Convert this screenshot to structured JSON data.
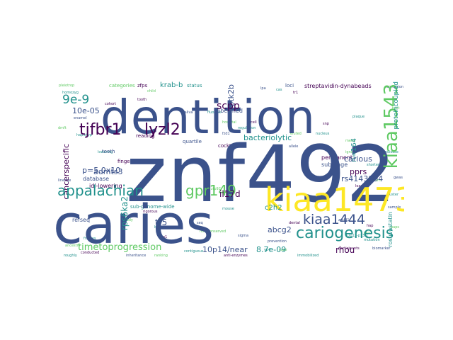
{
  "colors": {
    "background": "#ffffff",
    "viridis": [
      "#440154",
      "#3b528b",
      "#21918c",
      "#5ec962",
      "#fde725"
    ]
  },
  "words": {
    "znf492": "znf492",
    "dentition": "dentition",
    "caries": "caries",
    "kiaa1473": "kiaa1473",
    "tjfbr1": "tjfbr1",
    "lyzl2": "lyzl2",
    "appalachian": "appalachian",
    "gpr149": "gpr149",
    "kiaa1543": "kiaa1543",
    "cariogenesis": "cariogenesis",
    "kiaa1444": "kiaa1444",
    "timetoprogression": "timetoprogression",
    "e9": "9e-9",
    "bacteriolytic": "bacteriolytic",
    "scpp": "scpp",
    "ptk2b": "ptk2b",
    "proteincoupied": "proteincoupied",
    "rs4143094": "rs4143094",
    "il17d": "il17d",
    "abcg2": "abcg2",
    "tr5": "tr5",
    "rhou": "rhou",
    "e7": "8.7e-09",
    "nearp14": "10p14/near",
    "c2h2": "c2h2",
    "admts3": "admts3",
    "p50": "p=5.0x10",
    "cancerspecific": "cancerspecific",
    "e05": "10e-05",
    "pprs": "pprs",
    "carious": "carious",
    "krabb": "krab-b",
    "rps6ka2": "rps6ka2",
    "subcloned": "subcloned",
    "streptavidin": "streptavidin-dynabeads",
    "rosuvastatin": "rosuvastatin",
    "database": "database",
    "idllowering": "idl-lowering",
    "subgenome": "sub-genome-wide",
    "categories": "categories",
    "cocktail": "cocktail",
    "refseq": "refseq",
    "n164": "n=164",
    "quartile": "quartile",
    "reading": "reading",
    "tooth": "tooth",
    "finger": "finger",
    "permanent": "permanent",
    "subpage": "sub-page",
    "loci": "loci",
    "status": "status",
    "zfps": "zfps"
  }
}
